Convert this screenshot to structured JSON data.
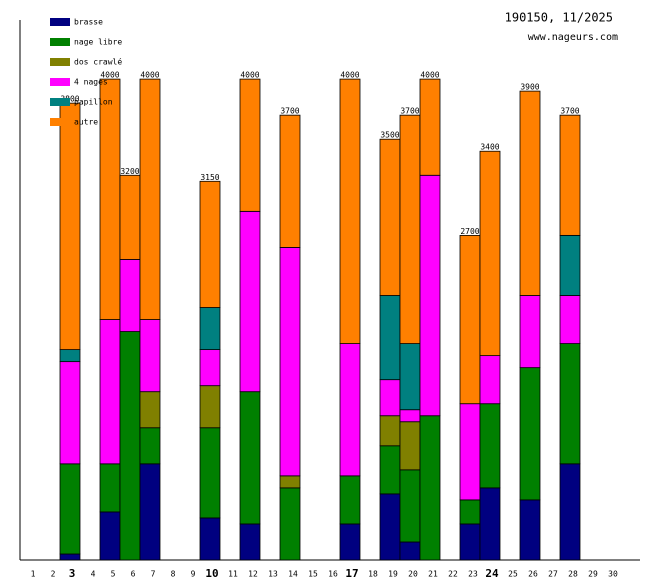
{
  "chart_data": {
    "type": "bar",
    "stacked": true,
    "title": "190150, 11/2025",
    "subtitle": "www.nageurs.com",
    "categories": [
      "1",
      "2",
      "3",
      "4",
      "5",
      "6",
      "7",
      "8",
      "9",
      "10",
      "11",
      "12",
      "13",
      "14",
      "15",
      "16",
      "17",
      "18",
      "19",
      "20",
      "21",
      "22",
      "23",
      "24",
      "25",
      "26",
      "27",
      "28",
      "29",
      "30"
    ],
    "bold_categories": [
      "3",
      "10",
      "17",
      "24"
    ],
    "ylim": [
      0,
      4400
    ],
    "series": [
      {
        "name": "brasse",
        "color": "#000080",
        "values": [
          null,
          null,
          50,
          null,
          400,
          null,
          800,
          null,
          null,
          350,
          null,
          300,
          null,
          null,
          null,
          null,
          300,
          null,
          550,
          150,
          null,
          null,
          300,
          600,
          null,
          500,
          null,
          800,
          null,
          null
        ]
      },
      {
        "name": "nage libre",
        "color": "#008000",
        "values": [
          null,
          null,
          750,
          null,
          400,
          1900,
          300,
          null,
          null,
          750,
          null,
          1100,
          null,
          600,
          null,
          null,
          400,
          null,
          400,
          600,
          1200,
          null,
          200,
          700,
          null,
          1100,
          null,
          1000,
          null,
          null
        ]
      },
      {
        "name": "dos crawlé",
        "color": "#808000",
        "values": [
          null,
          null,
          null,
          null,
          null,
          null,
          300,
          null,
          null,
          350,
          null,
          null,
          null,
          100,
          null,
          null,
          null,
          null,
          250,
          400,
          null,
          null,
          null,
          null,
          null,
          null,
          null,
          null,
          null,
          null
        ]
      },
      {
        "name": "4 nages",
        "color": "#ff00ff",
        "values": [
          null,
          null,
          850,
          null,
          1200,
          600,
          600,
          null,
          null,
          300,
          null,
          1500,
          null,
          1900,
          null,
          null,
          1100,
          null,
          300,
          100,
          2000,
          null,
          800,
          400,
          null,
          600,
          null,
          400,
          null,
          null
        ]
      },
      {
        "name": "papillon",
        "color": "#008080",
        "values": [
          null,
          null,
          100,
          null,
          null,
          null,
          null,
          null,
          null,
          350,
          null,
          null,
          null,
          null,
          null,
          null,
          null,
          null,
          700,
          550,
          null,
          null,
          null,
          null,
          null,
          null,
          null,
          500,
          null,
          null
        ]
      },
      {
        "name": "autre",
        "color": "#ff8000",
        "values": [
          null,
          null,
          2050,
          null,
          2000,
          700,
          2000,
          null,
          null,
          1050,
          null,
          1100,
          null,
          1100,
          null,
          null,
          2200,
          null,
          1300,
          1900,
          800,
          null,
          1400,
          1700,
          null,
          1700,
          null,
          1000,
          null,
          null
        ]
      }
    ],
    "totals": [
      null,
      null,
      3800,
      null,
      4000,
      3200,
      4000,
      null,
      null,
      3150,
      null,
      4000,
      null,
      3700,
      null,
      null,
      4000,
      null,
      3500,
      3700,
      4000,
      null,
      2700,
      3400,
      null,
      3900,
      null,
      3700,
      null,
      null
    ]
  }
}
